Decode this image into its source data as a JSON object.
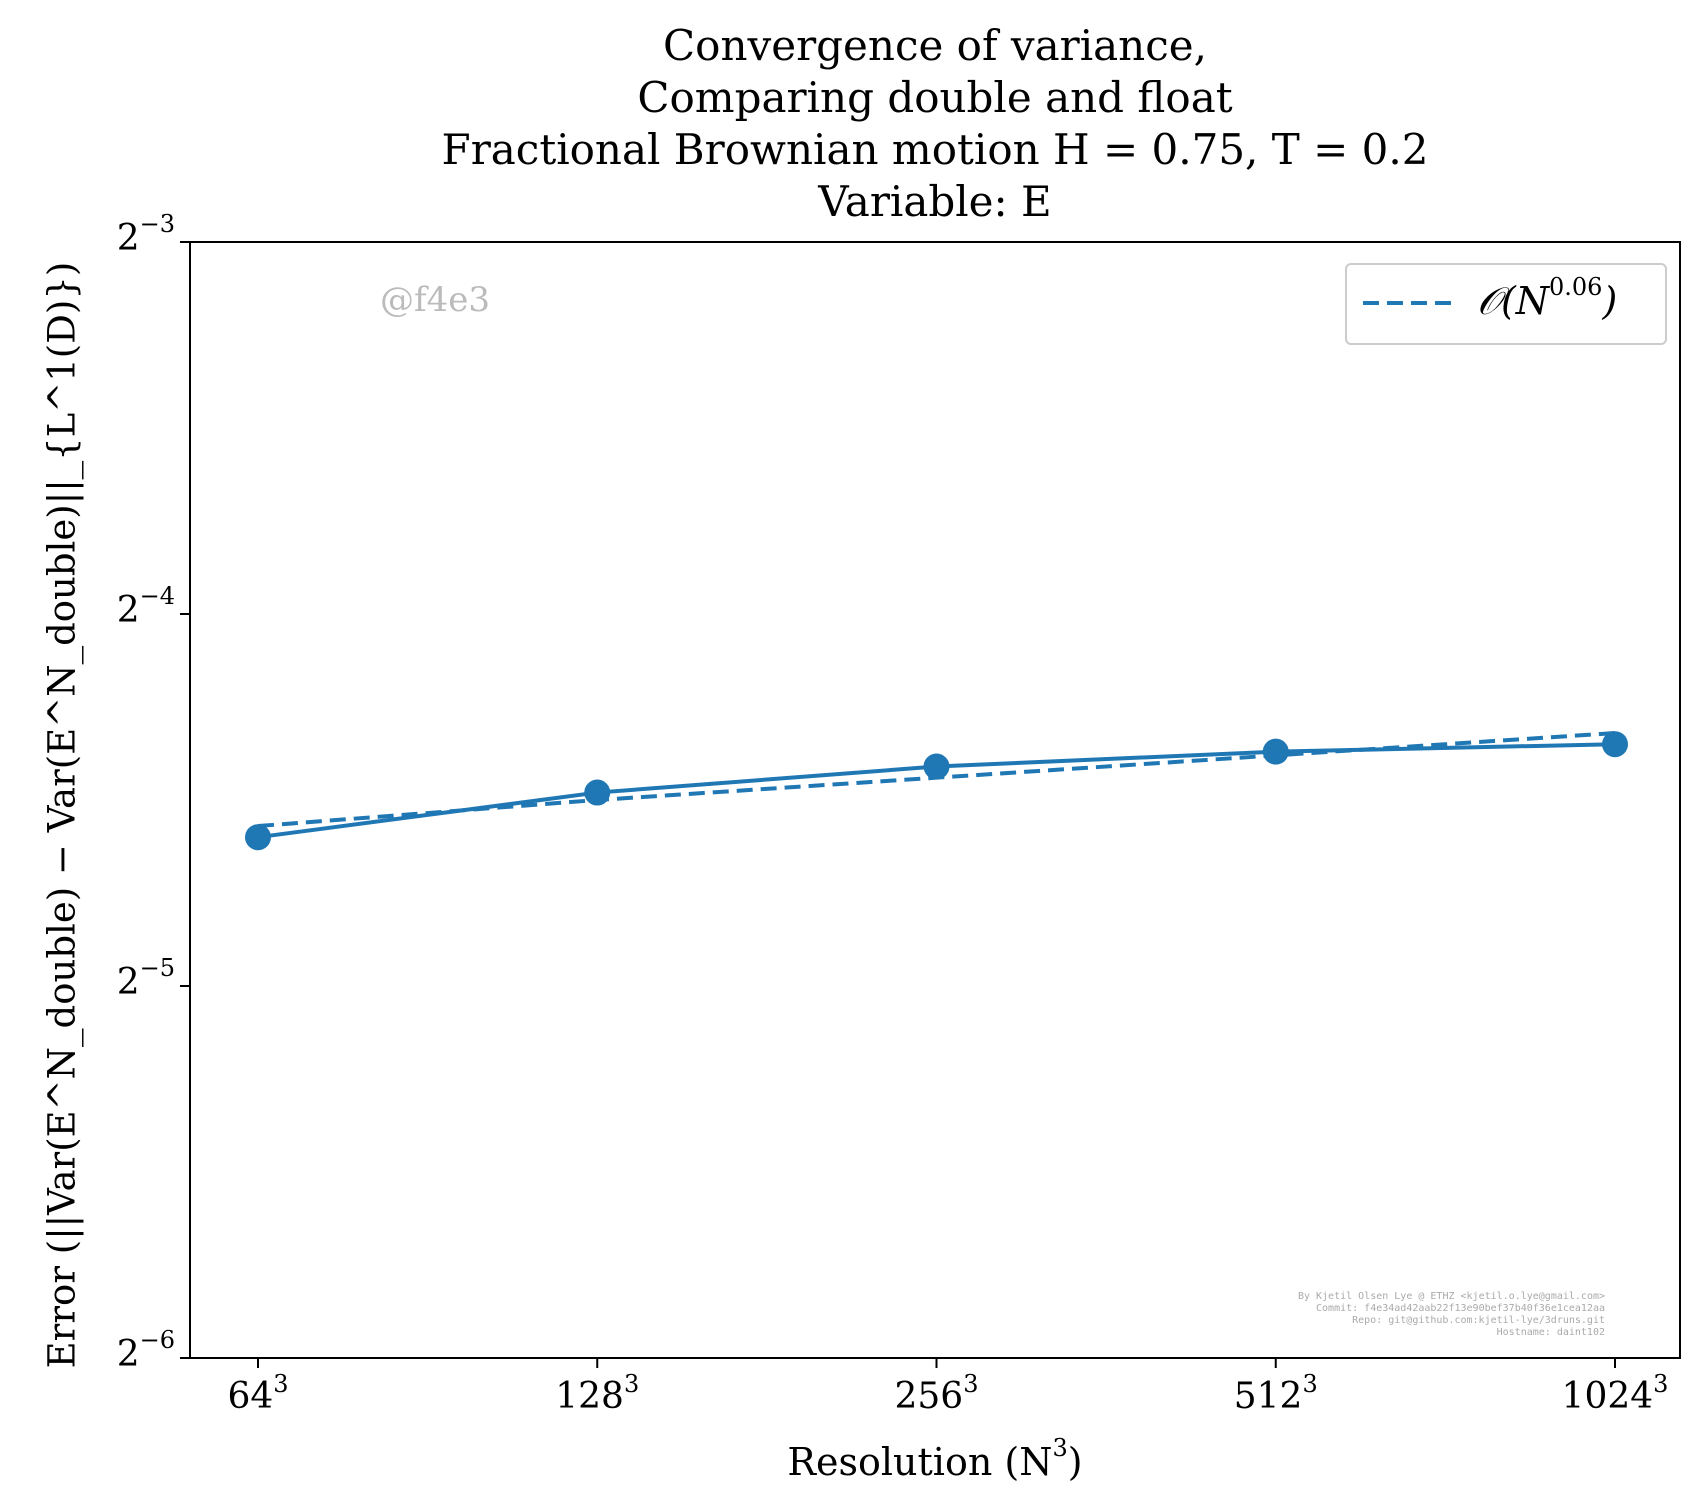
{
  "chart_data": {
    "type": "line",
    "title_lines": [
      "Convergence of variance,",
      "Comparing double and float",
      "Fractional Brownian motion H = 0.75, T = 0.2",
      "Variable: E"
    ],
    "xlabel": "Resolution (N",
    "xlabel_exp": "3",
    "xlabel_end": ")",
    "ylabel": "Error (||Var(E^N_double) − Var(E^N_double)||_{L^1(D)})",
    "x_categories": [
      64,
      128,
      256,
      512,
      1024
    ],
    "x_tick_labels": [
      {
        "base": "64",
        "exp": "3"
      },
      {
        "base": "128",
        "exp": "3"
      },
      {
        "base": "256",
        "exp": "3"
      },
      {
        "base": "512",
        "exp": "3"
      },
      {
        "base": "1024",
        "exp": "3"
      }
    ],
    "y_scale": "log2",
    "ylim_log2": [
      -6,
      -3
    ],
    "y_tick_labels": [
      {
        "base": "2",
        "exp": "−3",
        "log2": -3
      },
      {
        "base": "2",
        "exp": "−4",
        "log2": -4
      },
      {
        "base": "2",
        "exp": "−5",
        "log2": -5
      },
      {
        "base": "2",
        "exp": "−6",
        "log2": -6
      }
    ],
    "series": [
      {
        "name": "Error",
        "style": "solid-markers",
        "log2_values": [
          -4.6,
          -4.48,
          -4.41,
          -4.37,
          -4.35
        ]
      },
      {
        "name": "O(N^0.06)",
        "style": "dashed",
        "log2_values": [
          -4.57,
          -4.5,
          -4.44,
          -4.38,
          -4.32
        ]
      }
    ],
    "legend": {
      "label_prefix": "𝒪(N",
      "label_exp": "0.06",
      "label_suffix": ")",
      "location": "top-right"
    },
    "color": "#1f77b4"
  },
  "watermark": "@f4e3",
  "credits": [
    "By Kjetil Olsen Lye @ ETHZ <kjetil.o.lye@gmail.com>",
    "Commit: f4e34ad42aab22f13e90bef37b40f36e1cea12aa",
    "Repo: git@github.com:kjetil-lye/3druns.git",
    "Hostname: daint102"
  ]
}
